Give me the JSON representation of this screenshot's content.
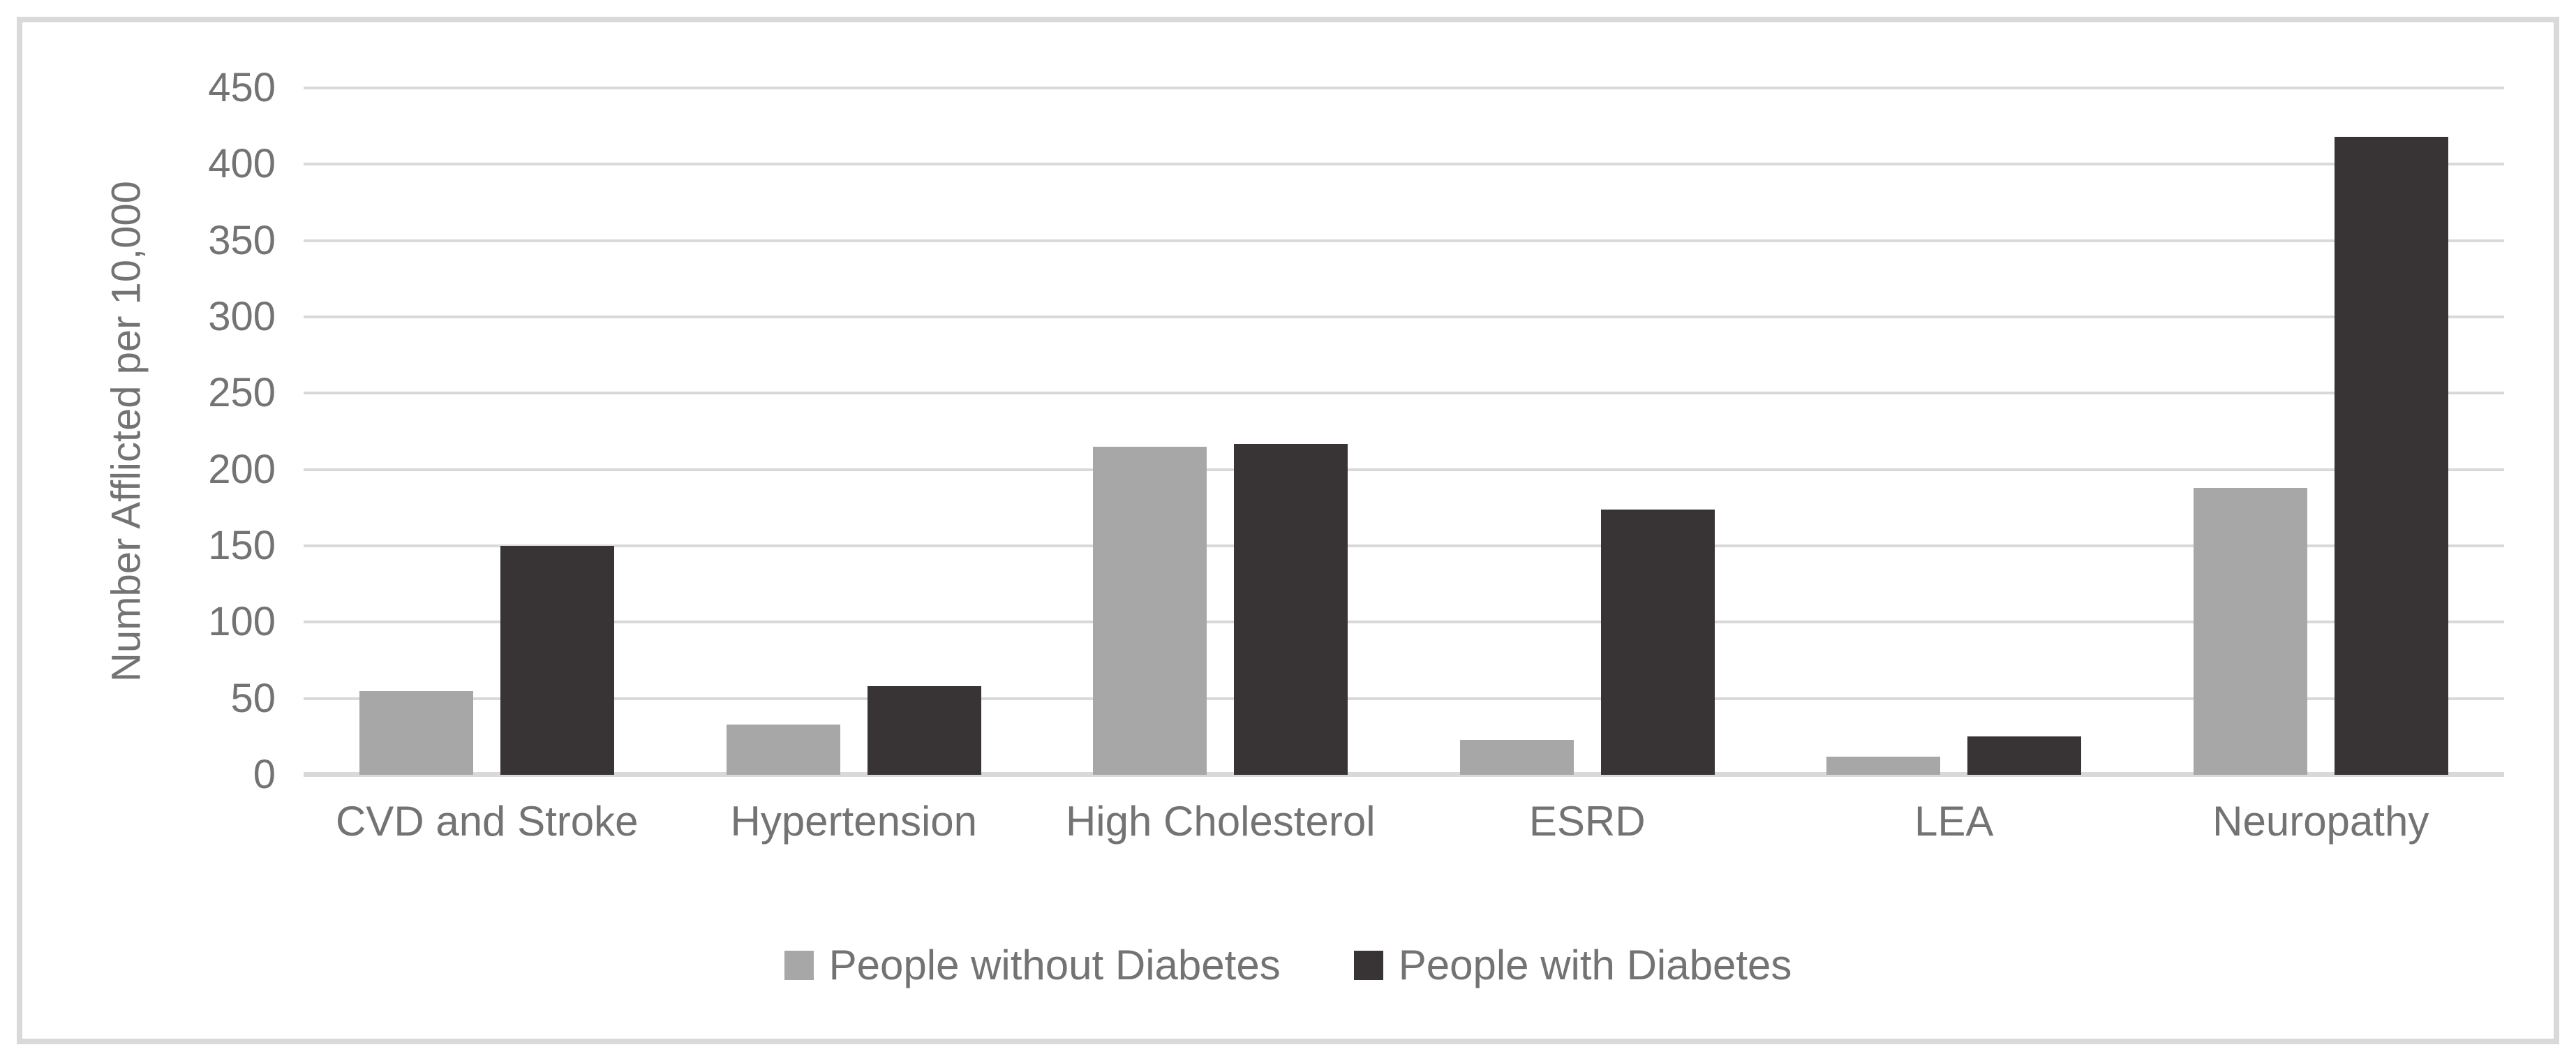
{
  "colors": {
    "series_without_diabetes": "#a7a7a7",
    "series_with_diabetes": "#383334",
    "gridline": "#d9d9d9",
    "axis_line": "#d9d9d9",
    "frame_border": "#d9d9d9",
    "text": "#737373",
    "background": "#ffffff"
  },
  "chart_data": {
    "type": "bar",
    "title": "",
    "xlabel": "",
    "ylabel": "Number Afflicted per 10,000",
    "categories": [
      "CVD and Stroke",
      "Hypertension",
      "High Cholesterol",
      "ESRD",
      "LEA",
      "Neuropathy"
    ],
    "series": [
      {
        "name": "People without Diabetes",
        "color": "#a7a7a7",
        "values": [
          55,
          33,
          215,
          23,
          12,
          188
        ]
      },
      {
        "name": "People with Diabetes",
        "color": "#383334",
        "values": [
          150,
          58,
          217,
          174,
          25,
          418
        ]
      }
    ],
    "ylim": [
      0,
      450
    ],
    "ytick_step": 50,
    "yticks": [
      0,
      50,
      100,
      150,
      200,
      250,
      300,
      350,
      400,
      450
    ],
    "grid": true,
    "legend_position": "bottom"
  }
}
